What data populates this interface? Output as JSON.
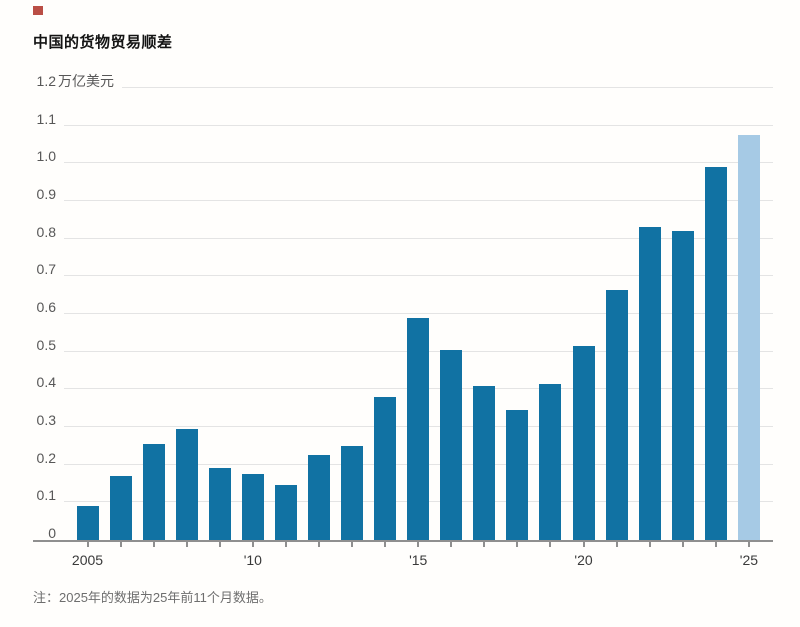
{
  "header": {
    "title": "中国的货物贸易顺差",
    "note": "注：2025年的数据为25年前11个月数据。"
  },
  "chart_data": {
    "type": "bar",
    "title": "中国的货物贸易顺差",
    "unit": "万亿美元",
    "categories": [
      2005,
      2006,
      2007,
      2008,
      2009,
      2010,
      2011,
      2012,
      2013,
      2014,
      2015,
      2016,
      2017,
      2018,
      2019,
      2020,
      2021,
      2022,
      2023,
      2024,
      2025
    ],
    "values": [
      0.09,
      0.17,
      0.255,
      0.295,
      0.19,
      0.175,
      0.145,
      0.225,
      0.25,
      0.38,
      0.59,
      0.505,
      0.41,
      0.345,
      0.415,
      0.515,
      0.665,
      0.83,
      0.82,
      0.99,
      1.075
    ],
    "highlight_category": 2025,
    "y_tick_labels": [
      "0",
      "0.1",
      "0.2",
      "0.3",
      "0.4",
      "0.5",
      "0.6",
      "0.7",
      "0.8",
      "0.9",
      "1.0",
      "1.1",
      "1.2"
    ],
    "x_axis_labels": [
      {
        "year": 2005,
        "label": "2005"
      },
      {
        "year": 2010,
        "label": "'10"
      },
      {
        "year": 2015,
        "label": "'15"
      },
      {
        "year": 2020,
        "label": "'20"
      },
      {
        "year": 2025,
        "label": "'25"
      }
    ],
    "ylim": [
      0,
      1.2
    ],
    "grid": true,
    "legend": "none",
    "note": "注：2025年的数据为25年前11个月数据。",
    "colors": {
      "bar": "#1172a3",
      "bar_highlight": "#a6cae5",
      "gridline": "#e4e4e4",
      "axis": "#8f8f8f",
      "title_text": "#141414",
      "tick_text": "#575757",
      "note_text": "#6e6e6e"
    }
  }
}
